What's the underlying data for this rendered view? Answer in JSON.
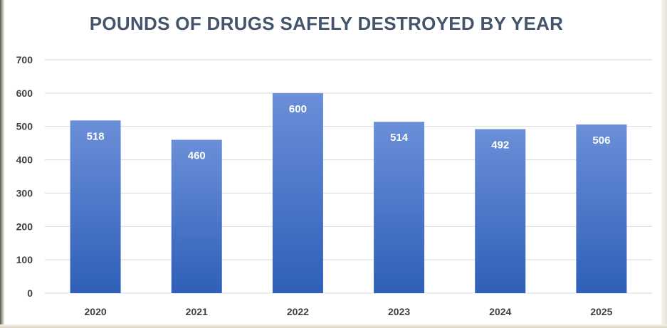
{
  "chart_data": {
    "type": "bar",
    "title": "POUNDS OF DRUGS SAFELY DESTROYED BY YEAR",
    "xlabel": "",
    "ylabel": "",
    "categories": [
      "2020",
      "2021",
      "2022",
      "2023",
      "2024",
      "2025"
    ],
    "values": [
      518,
      460,
      600,
      514,
      492,
      506
    ],
    "data_labels": [
      "518",
      "460",
      "600",
      "514",
      "492",
      "506"
    ],
    "ylim": [
      0,
      700
    ],
    "yticks": [
      "0",
      "100",
      "200",
      "300",
      "400",
      "500",
      "600",
      "700"
    ],
    "ytick_values": [
      0,
      100,
      200,
      300,
      400,
      500,
      600,
      700
    ],
    "grid": true,
    "legend": "none",
    "colors": {
      "bar_top": "#6b8fd8",
      "bar_bottom": "#2f5fb8",
      "title": "#44546a",
      "grid": "#d9d9d9",
      "tick_text": "#404040"
    }
  }
}
